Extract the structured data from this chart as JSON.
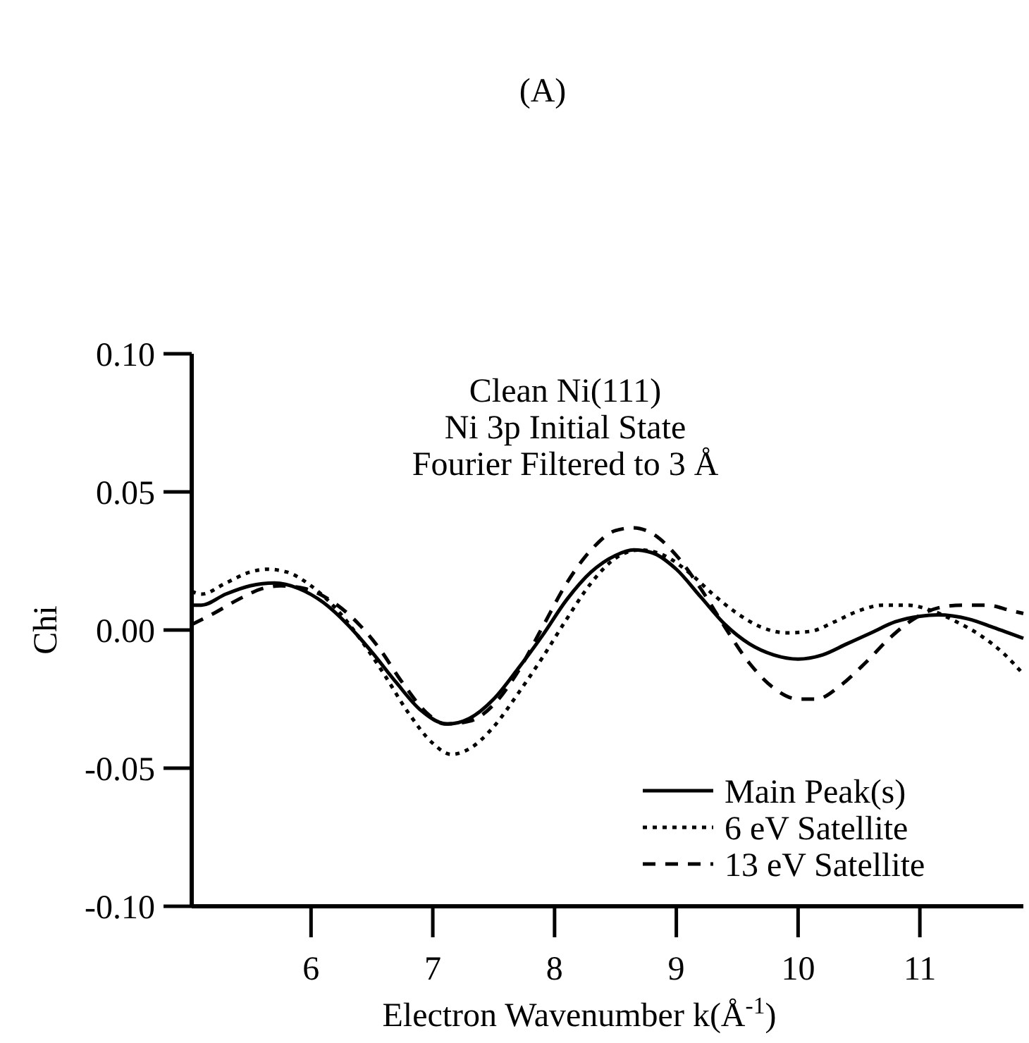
{
  "chart_data": {
    "type": "line",
    "title": "(A)",
    "xlabel": "Electron Wavenumber k(Å$^{-1}$)",
    "ylabel": "Chi",
    "annotations": [
      "Clean Ni(111)",
      "Ni 3p Initial State",
      "Fourier Filtered to 3 Å"
    ],
    "xlim": [
      5.02,
      11.85
    ],
    "xticks": [
      6,
      7,
      8,
      9,
      10,
      11
    ],
    "ylim": [
      -0.1,
      0.1
    ],
    "yticks": [
      {
        "value": -0.1,
        "label": "-0.10"
      },
      {
        "value": -0.05,
        "label": "-0.05"
      },
      {
        "value": 0,
        "label": "0.00"
      },
      {
        "value": 0.05,
        "label": "0.05"
      },
      {
        "value": 0.1,
        "label": "0.10"
      }
    ],
    "legend": "bottom right",
    "grid": false,
    "marker": "none",
    "series": [
      {
        "name": "Main Peak(s)",
        "color": "#000000",
        "line_style": "solid",
        "x": [
          5.02,
          5.1,
          5.3,
          5.5,
          5.7,
          5.9,
          6.1,
          6.3,
          6.5,
          6.7,
          6.9,
          7.12,
          7.3,
          7.5,
          7.7,
          7.9,
          8.1,
          8.3,
          8.5,
          8.65,
          8.8,
          9.0,
          9.2,
          9.4,
          9.6,
          9.8,
          10.0,
          10.2,
          10.4,
          10.6,
          10.8,
          11.0,
          11.15,
          11.4,
          11.6,
          11.85
        ],
        "values": [
          0.009,
          0.009,
          0.013,
          0.016,
          0.017,
          0.015,
          0.01,
          0.002,
          -0.008,
          -0.019,
          -0.029,
          -0.034,
          -0.032,
          -0.025,
          -0.014,
          -0.002,
          0.011,
          0.021,
          0.027,
          0.029,
          0.028,
          0.022,
          0.012,
          0.002,
          -0.005,
          -0.009,
          -0.0105,
          -0.009,
          -0.005,
          -0.001,
          0.003,
          0.005,
          0.0055,
          0.004,
          0.001,
          -0.003
        ]
      },
      {
        "name": "6 eV Satellite",
        "color": "#000000",
        "line_style": "dotted",
        "x": [
          5.02,
          5.1,
          5.3,
          5.5,
          5.64,
          5.8,
          6.0,
          6.2,
          6.4,
          6.6,
          6.8,
          7.0,
          7.15,
          7.3,
          7.5,
          7.7,
          7.9,
          8.1,
          8.3,
          8.5,
          8.7,
          8.9,
          9.1,
          9.3,
          9.5,
          9.7,
          9.9,
          10.1,
          10.3,
          10.5,
          10.7,
          10.9,
          11.1,
          11.3,
          11.5,
          11.7,
          11.85
        ],
        "values": [
          0.014,
          0.013,
          0.017,
          0.021,
          0.022,
          0.021,
          0.016,
          0.008,
          -0.003,
          -0.016,
          -0.03,
          -0.041,
          -0.045,
          -0.043,
          -0.035,
          -0.023,
          -0.01,
          0.004,
          0.017,
          0.026,
          0.029,
          0.027,
          0.021,
          0.013,
          0.006,
          0.001,
          -0.001,
          -0.0005,
          0.003,
          0.007,
          0.009,
          0.009,
          0.007,
          0.003,
          -0.002,
          -0.009,
          -0.016
        ]
      },
      {
        "name": "13 eV Satellite",
        "color": "#000000",
        "line_style": "dashed",
        "x": [
          5.02,
          5.2,
          5.4,
          5.6,
          5.75,
          5.95,
          6.15,
          6.35,
          6.55,
          6.75,
          6.95,
          7.1,
          7.3,
          7.5,
          7.7,
          7.9,
          8.1,
          8.3,
          8.5,
          8.65,
          8.8,
          9.0,
          9.2,
          9.4,
          9.6,
          9.8,
          10.0,
          10.15,
          10.35,
          10.55,
          10.75,
          10.95,
          11.15,
          11.35,
          11.55,
          11.75,
          11.85
        ],
        "values": [
          0.002,
          0.006,
          0.011,
          0.015,
          0.016,
          0.015,
          0.011,
          0.004,
          -0.006,
          -0.019,
          -0.03,
          -0.034,
          -0.033,
          -0.027,
          -0.015,
          0.001,
          0.017,
          0.029,
          0.036,
          0.037,
          0.035,
          0.027,
          0.015,
          0.001,
          -0.012,
          -0.021,
          -0.025,
          -0.025,
          -0.02,
          -0.012,
          -0.003,
          0.004,
          0.008,
          0.009,
          0.009,
          0.007,
          0.006
        ]
      }
    ]
  }
}
